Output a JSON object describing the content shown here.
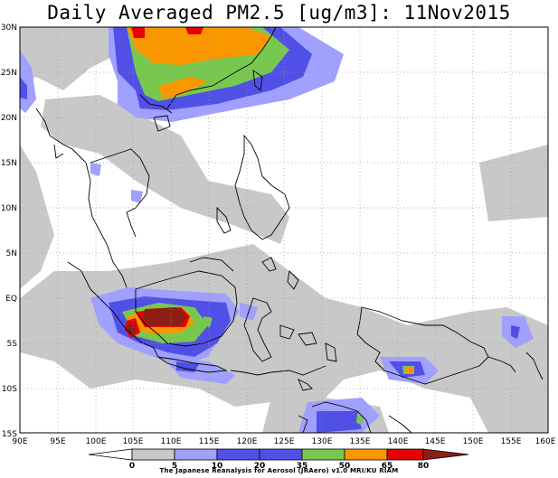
{
  "title": "Daily Averaged PM2.5 [ug/m3]: 11Nov2015",
  "lat_labels": [
    "30N",
    "25N",
    "20N",
    "15N",
    "10N",
    "5N",
    "EQ",
    "5S",
    "10S",
    "15S"
  ],
  "lon_labels": [
    "90E",
    "95E",
    "100E",
    "105E",
    "110E",
    "115E",
    "120E",
    "125E",
    "130E",
    "135E",
    "140E",
    "145E",
    "150E",
    "155E",
    "160E"
  ],
  "colorbar": {
    "ticks": [
      "0",
      "5",
      "10",
      "20",
      "35",
      "50",
      "65",
      "80"
    ],
    "colors": [
      "#ffffff",
      "#c8c8c8",
      "#a0a0ff",
      "#5050e6",
      "#78c850",
      "#fa9600",
      "#e60000",
      "#8c1e14"
    ]
  },
  "credit": "The Japanese Reanalysis for Aerosol (JRAero) v1.0  MRI/KU  RIAM"
}
